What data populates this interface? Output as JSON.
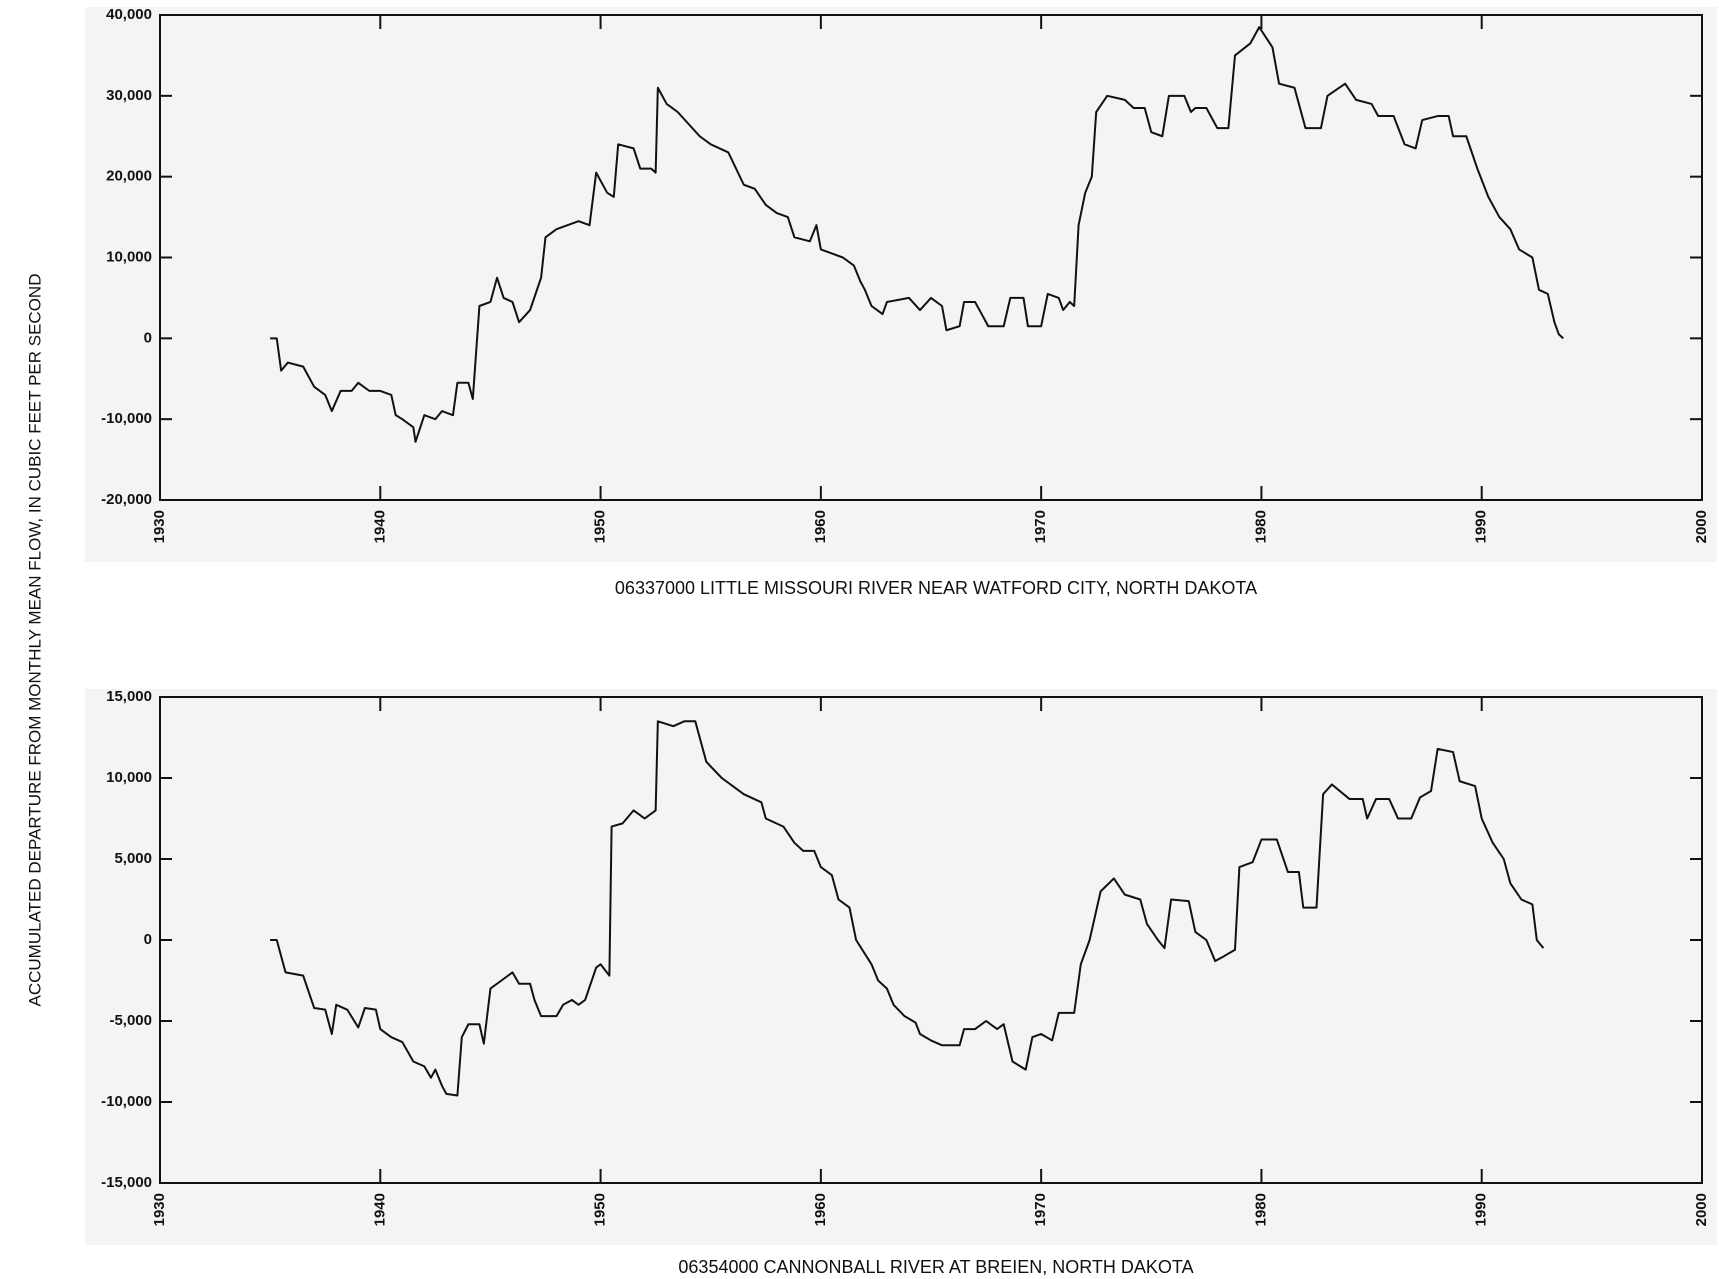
{
  "chart_data": [
    {
      "type": "line",
      "title": "06337000 LITTLE MISSOURI RIVER NEAR WATFORD CITY, NORTH DAKOTA",
      "ylabel": "ACCUMULATED DEPARTURE FROM MONTHLY MEAN FLOW, IN CUBIC FEET PER SECOND",
      "xlim": [
        1930,
        2000
      ],
      "xticks": [
        1930,
        1940,
        1950,
        1960,
        1970,
        1980,
        1990,
        2000
      ],
      "ylim": [
        -20000,
        40000
      ],
      "yticks": [
        {
          "value": -20000,
          "label": "-20,000"
        },
        {
          "value": -10000,
          "label": "-10,000"
        },
        0,
        {
          "value": 10000,
          "label": "10,000"
        },
        {
          "value": 20000,
          "label": "20,000"
        },
        {
          "value": 30000,
          "label": "30,000"
        },
        {
          "value": 40000,
          "label": "40,000"
        }
      ],
      "color": "#111111",
      "x": [
        1935.0,
        1935.3,
        1935.5,
        1935.8,
        1936.5,
        1937.0,
        1937.5,
        1937.8,
        1938.2,
        1938.7,
        1939.0,
        1939.5,
        1940.0,
        1940.5,
        1940.7,
        1941.0,
        1941.5,
        1941.6,
        1942.0,
        1942.5,
        1942.8,
        1943.3,
        1943.5,
        1944.0,
        1944.2,
        1944.5,
        1945.0,
        1945.3,
        1945.6,
        1946.0,
        1946.3,
        1946.8,
        1947.3,
        1947.5,
        1948.0,
        1948.5,
        1949.0,
        1949.5,
        1949.8,
        1950.3,
        1950.6,
        1950.8,
        1951.5,
        1951.8,
        1952.3,
        1952.5,
        1952.6,
        1953.0,
        1953.5,
        1954.0,
        1954.5,
        1955.0,
        1955.8,
        1956.5,
        1957.0,
        1957.5,
        1958.0,
        1958.5,
        1958.8,
        1959.5,
        1959.8,
        1960.0,
        1960.5,
        1961.0,
        1961.5,
        1961.8,
        1962.0,
        1962.3,
        1962.8,
        1963.0,
        1964.0,
        1964.5,
        1965.0,
        1965.5,
        1965.7,
        1966.3,
        1966.5,
        1967.0,
        1967.3,
        1967.6,
        1968.3,
        1968.6,
        1969.2,
        1969.4,
        1970.0,
        1970.3,
        1970.8,
        1971.0,
        1971.3,
        1971.5,
        1971.7,
        1972.0,
        1972.3,
        1972.5,
        1973.0,
        1973.8,
        1974.2,
        1974.7,
        1975.0,
        1975.5,
        1975.8,
        1976.5,
        1976.8,
        1977.0,
        1977.5,
        1978.0,
        1978.5,
        1978.8,
        1979.5,
        1979.9,
        1980.5,
        1980.8,
        1981.5,
        1982.0,
        1982.7,
        1983.0,
        1983.8,
        1984.3,
        1985.0,
        1985.3,
        1986.0,
        1986.5,
        1987.0,
        1987.3,
        1988.0,
        1988.5,
        1988.7,
        1989.3,
        1989.8,
        1990.3,
        1990.8,
        1991.3,
        1991.7,
        1992.3,
        1992.6,
        1993.0,
        1993.3,
        1993.5,
        1993.7
      ],
      "values": [
        0,
        0,
        -4000,
        -3000,
        -3500,
        -6000,
        -7000,
        -9000,
        -6500,
        -6500,
        -5500,
        -6500,
        -6500,
        -7000,
        -9500,
        -10000,
        -11000,
        -12800,
        -9500,
        -10000,
        -9000,
        -9500,
        -5500,
        -5500,
        -7500,
        4000,
        4500,
        7500,
        5000,
        4500,
        2000,
        3500,
        7500,
        12500,
        13500,
        14000,
        14500,
        14000,
        20500,
        18000,
        17500,
        24000,
        23500,
        21000,
        21000,
        20500,
        31000,
        29000,
        28000,
        26500,
        25000,
        24000,
        23000,
        19000,
        18500,
        16500,
        15500,
        15000,
        12500,
        12000,
        14000,
        11000,
        10500,
        10000,
        9000,
        7000,
        6000,
        4000,
        3000,
        4500,
        5000,
        3500,
        5000,
        4000,
        1000,
        1500,
        4500,
        4500,
        3000,
        1500,
        1500,
        5000,
        5000,
        1500,
        1500,
        5500,
        5000,
        3500,
        4500,
        4000,
        14000,
        18000,
        20000,
        28000,
        30000,
        29500,
        28500,
        28500,
        25500,
        25000,
        30000,
        30000,
        28000,
        28500,
        28500,
        26000,
        26000,
        35000,
        36500,
        38500,
        36000,
        31500,
        31000,
        26000,
        26000,
        30000,
        31500,
        29500,
        29000,
        27500,
        27500,
        24000,
        23500,
        27000,
        27500,
        27500,
        25000,
        25000,
        21000,
        17500,
        15000,
        13500,
        11000,
        10000,
        6000,
        5500,
        2000,
        500,
        0
      ]
    },
    {
      "type": "line",
      "title": "06354000 CANNONBALL RIVER AT BREIEN, NORTH DAKOTA",
      "xlim": [
        1930,
        2000
      ],
      "xticks": [
        1930,
        1940,
        1950,
        1960,
        1970,
        1980,
        1990,
        2000
      ],
      "ylim": [
        -15000,
        15000
      ],
      "yticks": [
        {
          "value": -15000,
          "label": "-15,000"
        },
        {
          "value": -10000,
          "label": "-10,000"
        },
        {
          "value": -5000,
          "label": "-5,000"
        },
        0,
        {
          "value": 5000,
          "label": "5,000"
        },
        {
          "value": 10000,
          "label": "10,000"
        },
        {
          "value": 15000,
          "label": "15,000"
        }
      ],
      "color": "#111111",
      "x": [
        1935.0,
        1935.3,
        1935.7,
        1936.5,
        1937.0,
        1937.5,
        1937.8,
        1938.0,
        1938.5,
        1939.0,
        1939.3,
        1939.8,
        1940.0,
        1940.5,
        1941.0,
        1941.5,
        1942.0,
        1942.3,
        1942.5,
        1942.8,
        1943.0,
        1943.5,
        1943.7,
        1944.0,
        1944.5,
        1944.7,
        1945.0,
        1945.5,
        1946.0,
        1946.3,
        1946.8,
        1947.0,
        1947.3,
        1948.0,
        1948.3,
        1948.7,
        1949.0,
        1949.3,
        1949.8,
        1950.0,
        1950.4,
        1950.5,
        1951.0,
        1951.5,
        1952.0,
        1952.5,
        1952.6,
        1953.3,
        1953.8,
        1954.3,
        1954.8,
        1955.5,
        1956.0,
        1956.5,
        1957.3,
        1957.5,
        1958.3,
        1958.8,
        1959.2,
        1959.7,
        1960.0,
        1960.5,
        1960.8,
        1961.3,
        1961.6,
        1962.3,
        1962.6,
        1963.0,
        1963.3,
        1963.8,
        1964.3,
        1964.5,
        1965.0,
        1965.5,
        1966.3,
        1966.5,
        1967.0,
        1967.5,
        1968.0,
        1968.3,
        1968.7,
        1969.3,
        1969.6,
        1970.0,
        1970.5,
        1970.8,
        1971.5,
        1971.8,
        1972.2,
        1972.7,
        1973.3,
        1973.8,
        1974.5,
        1974.8,
        1975.3,
        1975.6,
        1975.9,
        1976.7,
        1977.0,
        1977.5,
        1977.9,
        1978.3,
        1978.8,
        1979.0,
        1979.6,
        1980.0,
        1980.7,
        1981.2,
        1981.7,
        1981.9,
        1982.5,
        1982.8,
        1983.2,
        1984.0,
        1984.6,
        1984.8,
        1985.2,
        1985.8,
        1986.2,
        1986.8,
        1987.2,
        1987.7,
        1988.0,
        1988.7,
        1989.0,
        1989.7,
        1990.0,
        1990.5,
        1991.0,
        1991.3,
        1991.8,
        1992.3,
        1992.5,
        1992.8
      ],
      "values": [
        0,
        0,
        -2000,
        -2200,
        -4200,
        -4300,
        -5800,
        -4000,
        -4300,
        -5400,
        -4200,
        -4300,
        -5500,
        -6000,
        -6300,
        -7500,
        -7800,
        -8500,
        -8000,
        -9000,
        -9500,
        -9600,
        -6000,
        -5200,
        -5200,
        -6400,
        -3000,
        -2500,
        -2000,
        -2700,
        -2700,
        -3700,
        -4700,
        -4700,
        -4000,
        -3700,
        -4000,
        -3700,
        -1700,
        -1500,
        -2200,
        7000,
        7200,
        8000,
        7500,
        8000,
        13500,
        13200,
        13500,
        13500,
        11000,
        10000,
        9500,
        9000,
        8500,
        7500,
        7000,
        6000,
        5500,
        5500,
        4500,
        4000,
        2500,
        2000,
        0,
        -1500,
        -2500,
        -3000,
        -4000,
        -4700,
        -5100,
        -5800,
        -6200,
        -6500,
        -6500,
        -5500,
        -5500,
        -5000,
        -5500,
        -5200,
        -7500,
        -8000,
        -6000,
        -5800,
        -6200,
        -4500,
        -4500,
        -1500,
        0,
        3000,
        3800,
        2800,
        2500,
        1000,
        0,
        -500,
        2500,
        2400,
        500,
        0,
        -1300,
        -1000,
        -600,
        4500,
        4800,
        6200,
        6200,
        4200,
        4200,
        2000,
        2000,
        9000,
        9600,
        8700,
        8700,
        7500,
        8700,
        8700,
        7500,
        7500,
        8800,
        9200,
        11800,
        11600,
        9800,
        9500,
        7500,
        6000,
        5000,
        3500,
        2500,
        2200,
        0,
        -500
      ]
    }
  ]
}
